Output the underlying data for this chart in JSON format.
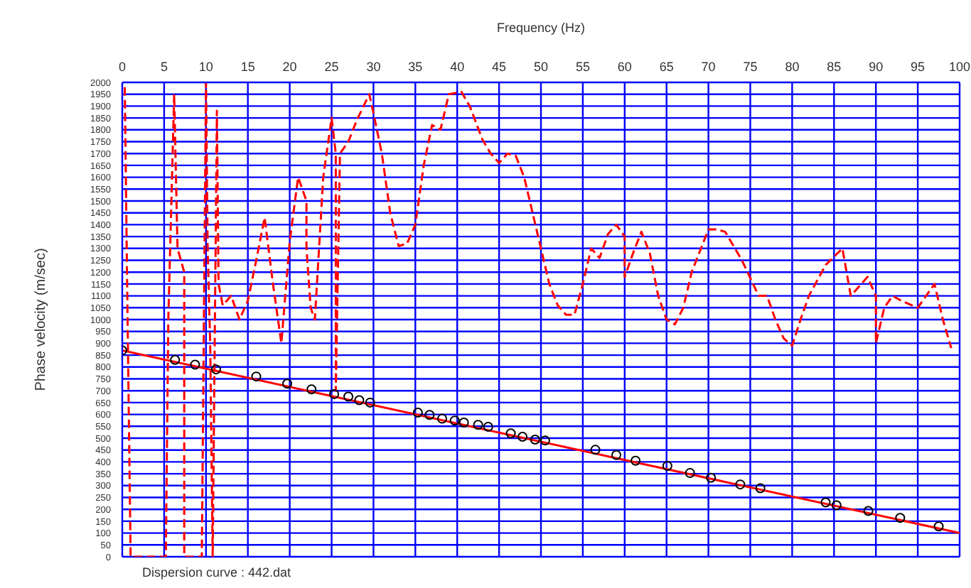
{
  "chart_data": {
    "type": "line",
    "xlabel": "Frequency (Hz)",
    "ylabel": "Phase velocity (m/sec)",
    "xlim": [
      0,
      100
    ],
    "xticks": [
      0,
      5,
      10,
      15,
      20,
      25,
      30,
      35,
      40,
      45,
      50,
      55,
      60,
      65,
      70,
      75,
      80,
      85,
      90,
      95,
      100
    ],
    "ylim": [
      0,
      2000
    ],
    "yticks": [
      0,
      50,
      100,
      150,
      200,
      250,
      300,
      350,
      400,
      450,
      500,
      550,
      600,
      650,
      700,
      750,
      800,
      850,
      900,
      950,
      1000,
      1050,
      1100,
      1150,
      1200,
      1250,
      1300,
      1350,
      1400,
      1450,
      1500,
      1550,
      1600,
      1650,
      1700,
      1750,
      1800,
      1850,
      1900,
      1950,
      2000
    ],
    "grid": true,
    "annotations": [
      "Dispersion curve : 442.dat"
    ],
    "series": [
      {
        "type": "line",
        "line_style": "dashed",
        "color": "#ff0000",
        "x": [
          0.3,
          0.6,
          1,
          5.2,
          5.5,
          6.2,
          6.6,
          7.4,
          7.4,
          9.5,
          10,
          10.2,
          10.5,
          10.8,
          11.3,
          11.5,
          12,
          13,
          14,
          15,
          16,
          17,
          18,
          19,
          20,
          21,
          22,
          22,
          22.5,
          23,
          24,
          25,
          25.5,
          25.5,
          26,
          27,
          28,
          29.5,
          30,
          31,
          32,
          33,
          34,
          35,
          36,
          37,
          38,
          39,
          40.5,
          41.5,
          43,
          44,
          45,
          46,
          47,
          48,
          49,
          50,
          51,
          52,
          53,
          54,
          55,
          56,
          57,
          58,
          59,
          60,
          60,
          61,
          62,
          63,
          64,
          65,
          66,
          67,
          68,
          70,
          71,
          72,
          74,
          76,
          77,
          78,
          79,
          80,
          81,
          82,
          84,
          86,
          86.5,
          87,
          88,
          89,
          90,
          90,
          91,
          92,
          93,
          95,
          96,
          97,
          98,
          99
        ],
        "values": [
          1980,
          1100,
          0,
          0,
          1000,
          1950,
          1300,
          1200,
          0,
          0,
          2000,
          1300,
          900,
          0,
          1880,
          1150,
          1060,
          1100,
          1000,
          1080,
          1250,
          1430,
          1150,
          900,
          1330,
          1600,
          1500,
          1300,
          1050,
          1000,
          1600,
          1850,
          1700,
          700,
          1700,
          1750,
          1840,
          1950,
          1870,
          1700,
          1450,
          1310,
          1320,
          1400,
          1650,
          1820,
          1800,
          1950,
          1960,
          1900,
          1760,
          1700,
          1660,
          1700,
          1690,
          1600,
          1450,
          1300,
          1150,
          1060,
          1020,
          1020,
          1150,
          1300,
          1260,
          1360,
          1400,
          1350,
          1180,
          1280,
          1370,
          1280,
          1100,
          1000,
          980,
          1050,
          1200,
          1380,
          1380,
          1370,
          1250,
          1100,
          1100,
          1000,
          920,
          890,
          1000,
          1100,
          1230,
          1300,
          1200,
          1100,
          1140,
          1180,
          1100,
          900,
          1050,
          1100,
          1080,
          1050,
          1100,
          1150,
          1000,
          880
        ]
      },
      {
        "type": "line",
        "line_style": "solid",
        "color": "#ff0000",
        "x": [
          0,
          100
        ],
        "values": [
          870,
          100
        ]
      },
      {
        "type": "scatter",
        "marker": "circle",
        "color": "#000000",
        "x": [
          0,
          6.3,
          8.7,
          11.2,
          16,
          19.7,
          22.6,
          25.3,
          27,
          28.3,
          29.6,
          35.3,
          36.7,
          38.2,
          39.7,
          40.8,
          42.5,
          43.7,
          46.4,
          47.8,
          49.3,
          50.5,
          56.5,
          59,
          61.3,
          65.1,
          67.8,
          70.3,
          73.8,
          76.2,
          84,
          85.3,
          89.1,
          92.9,
          97.5
        ],
        "values": [
          870,
          830,
          810,
          790,
          760,
          730,
          706,
          686,
          675,
          660,
          650,
          608,
          598,
          582,
          574,
          566,
          556,
          548,
          520,
          506,
          494,
          490,
          451,
          429,
          405,
          383,
          353,
          333,
          305,
          289,
          229,
          217,
          193,
          164,
          128
        ]
      }
    ]
  }
}
